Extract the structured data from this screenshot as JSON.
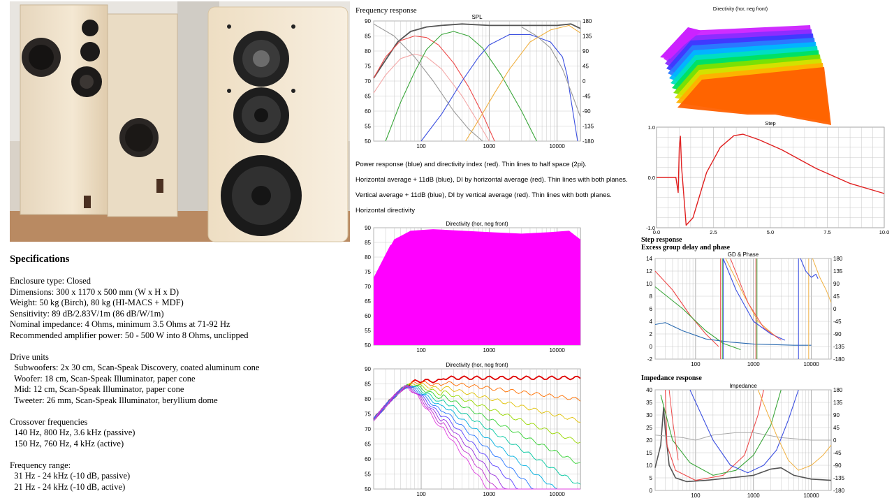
{
  "specs": {
    "title": "Specifications",
    "lines": [
      "Enclosure type: Closed",
      "Dimensions: 300 x 1170 x 500 mm (W x H x D)",
      "Weight: 50 kg (Birch), 80 kg (HI-MACS + MDF)",
      "Sensitivity: 89 dB/2.83V/1m (86 dB/W/1m)",
      "Nominal impedance: 4 Ohms, minimum 3.5 Ohms at 71-92 Hz",
      "Recommended amplifier power: 50 - 500 W into 8 Ohms, unclipped",
      "",
      "Drive units",
      "  Subwoofers: 2x 30 cm, Scan-Speak Discovery, coated aluminum cone",
      "  Woofer: 18 cm, Scan-Speak Illuminator, paper cone",
      "  Mid: 12 cm, Scan-Speak Illuminator, paper cone",
      "  Tweeter: 26 mm, Scan-Speak Illuminator, beryllium dome",
      "",
      "Crossover frequencies",
      "  140 Hz, 800 Hz, 3.6 kHz (passive)",
      "  150 Hz, 760 Hz, 4 kHz (active)",
      "",
      "Frequency range:",
      "  31 Hz - 24 kHz (-10 dB, passive)",
      "  21 Hz - 24 kHz (-10 dB, active)"
    ]
  },
  "labels": {
    "freq_response": "Frequency response",
    "note1": "Power response (blue) and directivity index (red). Thin lines to half space (2pi).",
    "note2": "Horizontal average + 11dB (blue), DI by horizontal average (red). Thin lines with both planes.",
    "note3": "Vertical average + 11dB (blue), DI by vertical average (red). Thin lines with both planes.",
    "note4": "Horizontal directivity",
    "step_response": "Step response",
    "excess_gd": "Excess group delay and phase",
    "impedance_response": "Impedance response"
  },
  "colors": {
    "grid": "#c8c8c8",
    "sub": "#ee4b4b",
    "woofer": "#3aa63a",
    "mid": "#3b4fe0",
    "tweeter": "#f0b040",
    "sum": "#555555",
    "step": "#e02020"
  },
  "chart_data": [
    {
      "id": "spl",
      "type": "line",
      "title": "SPL",
      "x_scale": "log",
      "xlim": [
        20,
        22000
      ],
      "ylim": [
        50,
        90
      ],
      "y2lim": [
        -180,
        180
      ],
      "x_ticks": [
        "100",
        "1000",
        "10000"
      ],
      "y_ticks": [
        "90",
        "85",
        "80",
        "75",
        "70",
        "65",
        "60",
        "55",
        "50"
      ],
      "y2_ticks": [
        "180",
        "135",
        "90",
        "45",
        "0",
        "-45",
        "-90",
        "-135",
        "-180"
      ],
      "series": [
        {
          "color": "#555555",
          "x": [
            20,
            30,
            45,
            70,
            120,
            200,
            400,
            1000,
            3000,
            10000,
            16000,
            22000
          ],
          "y": [
            71,
            77,
            83,
            86.5,
            88,
            88.5,
            89,
            88.5,
            88.5,
            88.5,
            89,
            87.5
          ]
        },
        {
          "color": "#ee4b4b",
          "x": [
            20,
            30,
            50,
            80,
            120,
            180,
            300,
            500,
            800,
            1200
          ],
          "y": [
            71,
            78,
            83.5,
            85,
            84.5,
            82,
            76,
            68,
            59,
            50
          ]
        },
        {
          "color": "#f4a8a8",
          "x": [
            20,
            30,
            50,
            80,
            120,
            200,
            400,
            700,
            1000
          ],
          "y": [
            66,
            72,
            77.5,
            79,
            78,
            74,
            65,
            56,
            50
          ]
        },
        {
          "color": "#3aa63a",
          "x": [
            30,
            50,
            80,
            120,
            200,
            300,
            500,
            800,
            1500,
            3000,
            5000
          ],
          "y": [
            50,
            63,
            73,
            80.5,
            85.5,
            86.5,
            85,
            81,
            72,
            60,
            50
          ]
        },
        {
          "color": "#3b4fe0",
          "x": [
            100,
            200,
            400,
            700,
            1000,
            2000,
            4000,
            8000,
            12000,
            14000,
            17000,
            20000
          ],
          "y": [
            50,
            59,
            70,
            78,
            82,
            85.5,
            85.5,
            83,
            78,
            72,
            60,
            50
          ]
        },
        {
          "color": "#f0b040",
          "x": [
            450,
            700,
            1200,
            2000,
            4000,
            8000,
            15000,
            22000
          ],
          "y": [
            50,
            57,
            66,
            74,
            83,
            87,
            88.5,
            86
          ]
        },
        {
          "color": "#999999",
          "x": [
            20,
            40,
            80,
            150,
            300,
            500,
            800
          ],
          "y": [
            89,
            85,
            78,
            70,
            60,
            54,
            50
          ]
        },
        {
          "color": "#999999",
          "x": [
            3000,
            5000,
            8000,
            12000,
            17000,
            22000
          ],
          "y": [
            88,
            85,
            81,
            74,
            65,
            58
          ]
        }
      ]
    },
    {
      "id": "dir_surface",
      "type": "area",
      "title": "Directivity (hor, neg front)",
      "x_scale": "log",
      "xlim": [
        20,
        22000
      ],
      "ylim": [
        50,
        90
      ],
      "x_ticks": [
        "100",
        "1000",
        "10000"
      ],
      "y_ticks": [
        "90",
        "85",
        "80",
        "75",
        "70",
        "65",
        "60",
        "55",
        "50"
      ]
    },
    {
      "id": "dir_lines",
      "type": "line",
      "title": "Directivity (hor, neg front)",
      "x_scale": "log",
      "xlim": [
        20,
        22000
      ],
      "ylim": [
        50,
        90
      ],
      "x_ticks": [
        "100",
        "1000",
        "10000"
      ],
      "y_ticks": [
        "90",
        "85",
        "80",
        "75",
        "70",
        "65",
        "60",
        "55",
        "50"
      ]
    },
    {
      "id": "dir3d",
      "type": "area",
      "title": "Directivity (hor, neg front)"
    },
    {
      "id": "step",
      "type": "line",
      "title": "Step",
      "xlim": [
        0,
        10
      ],
      "ylim": [
        -1,
        1
      ],
      "x_ticks": [
        "0.0",
        "2.5",
        "5.0",
        "7.5",
        "10.0"
      ],
      "y_ticks": [
        "1.0",
        "0.0",
        "-1.0"
      ],
      "series": [
        {
          "color": "#e02020",
          "x": [
            0,
            0.85,
            0.95,
            1.0,
            1.05,
            1.1,
            1.3,
            1.6,
            1.8,
            2.2,
            2.8,
            3.4,
            3.8,
            4.5,
            5.5,
            7,
            8.5,
            10
          ],
          "y": [
            0,
            0,
            -0.3,
            0.6,
            0.82,
            0.2,
            -0.95,
            -0.8,
            -0.5,
            0.1,
            0.6,
            0.83,
            0.86,
            0.75,
            0.55,
            0.18,
            -0.12,
            -0.32
          ]
        }
      ]
    },
    {
      "id": "gd_phase",
      "type": "line",
      "title": "GD & Phase",
      "x_scale": "log",
      "xlim": [
        20,
        22000
      ],
      "ylim": [
        -2,
        14
      ],
      "y2lim": [
        -180,
        180
      ],
      "x_ticks": [
        "100",
        "1000",
        "10000"
      ],
      "y_ticks": [
        "14",
        "12",
        "10",
        "8",
        "6",
        "4",
        "2",
        "0",
        "-2"
      ],
      "y2_ticks": [
        "180",
        "135",
        "90",
        "45",
        "0",
        "-45",
        "-90",
        "-135",
        "-180"
      ]
    },
    {
      "id": "impedance",
      "type": "line",
      "title": "Impedance",
      "x_scale": "log",
      "xlim": [
        20,
        22000
      ],
      "ylim": [
        0,
        40
      ],
      "y2lim": [
        -180,
        180
      ],
      "x_ticks": [
        "100",
        "1000",
        "10000"
      ],
      "y_ticks": [
        "40",
        "35",
        "30",
        "25",
        "20",
        "15",
        "10",
        "5",
        "0"
      ],
      "y2_ticks": [
        "180",
        "135",
        "90",
        "45",
        "0",
        "-45",
        "-90",
        "-135",
        "-180"
      ]
    }
  ]
}
